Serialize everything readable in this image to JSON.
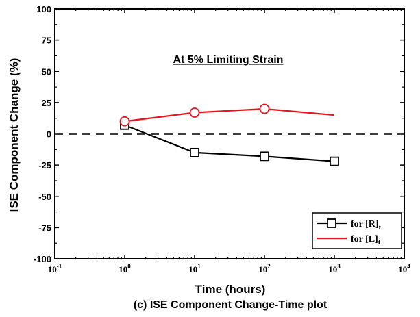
{
  "chart_data": {
    "type": "line",
    "annotation": "At 5% Limiting Strain",
    "xlabel": "Time (hours)",
    "ylabel": "ISE Component Change (%)",
    "caption": "(c) ISE Component Change-Time plot",
    "x_scale": "log",
    "xlim": [
      0.1,
      10000
    ],
    "ylim": [
      -100,
      100
    ],
    "x_ticks": [
      {
        "value": 0.1,
        "base": "10",
        "exp": "-1"
      },
      {
        "value": 1,
        "base": "10",
        "exp": "0"
      },
      {
        "value": 10,
        "base": "10",
        "exp": "1"
      },
      {
        "value": 100,
        "base": "10",
        "exp": "2"
      },
      {
        "value": 1000,
        "base": "10",
        "exp": "3"
      },
      {
        "value": 10000,
        "base": "10",
        "exp": "4"
      }
    ],
    "y_ticks": [
      {
        "value": 100,
        "label": "100"
      },
      {
        "value": 75,
        "label": "75"
      },
      {
        "value": 50,
        "label": "50"
      },
      {
        "value": 25,
        "label": "25"
      },
      {
        "value": 0,
        "label": "0"
      },
      {
        "value": -25,
        "label": "-25"
      },
      {
        "value": -50,
        "label": "-50"
      },
      {
        "value": -75,
        "label": "-75"
      },
      {
        "value": -100,
        "label": "-100"
      }
    ],
    "reference_line": {
      "y": 0,
      "style": "dashed"
    },
    "legend_position": "bottom-right",
    "series": [
      {
        "name": "for [R]",
        "name_sub": "t",
        "color": "#000000",
        "marker": "square",
        "x": [
          1,
          10,
          100,
          1000
        ],
        "y": [
          7,
          -15,
          -18,
          -22
        ]
      },
      {
        "name": "for [L]",
        "name_sub": "t",
        "color": "#e8141c",
        "marker": "circle",
        "marker_on_last": false,
        "x": [
          1,
          10,
          100,
          1000
        ],
        "y": [
          10,
          17,
          20,
          15
        ]
      }
    ]
  }
}
